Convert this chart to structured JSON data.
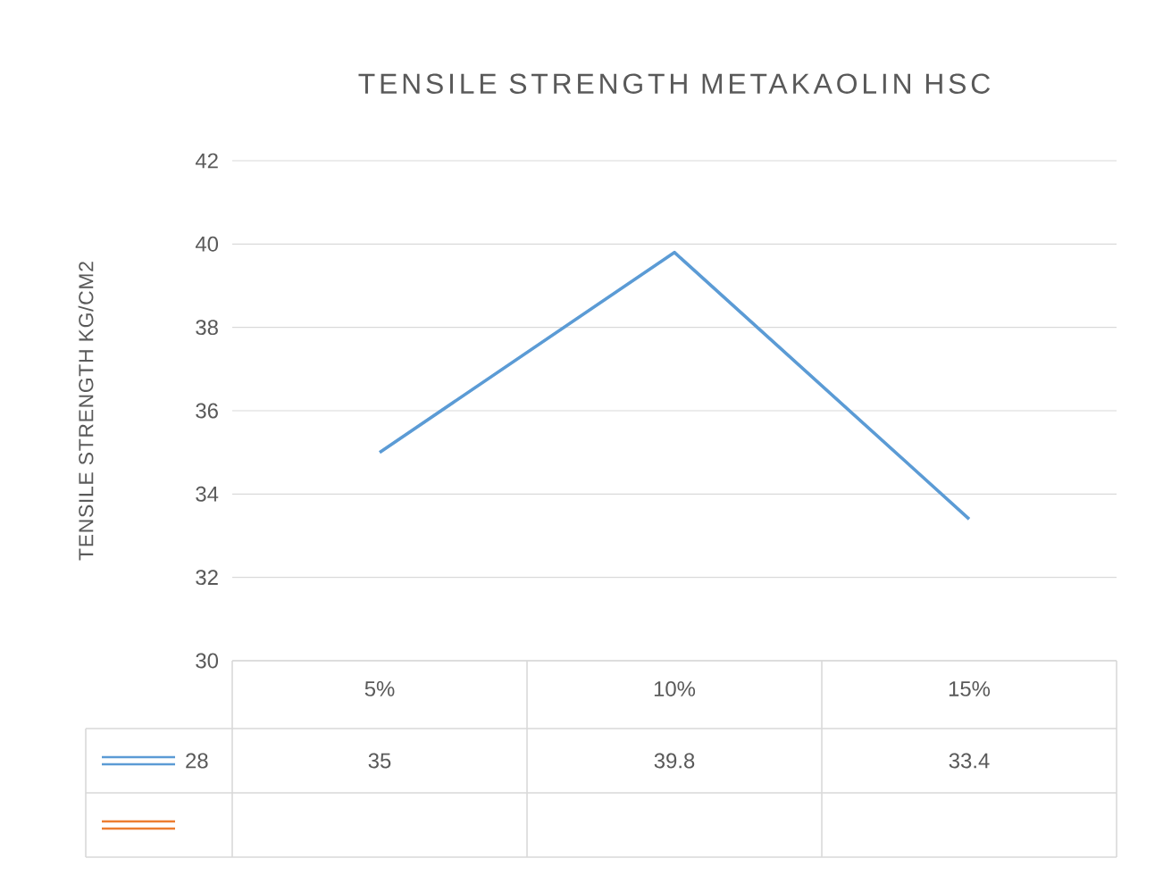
{
  "chart_data": {
    "type": "line",
    "title": "TENSILE STRENGTH METAKAOLIN HSC",
    "ylabel": "TENSILE STRENGTH KG/CM2",
    "categories": [
      "5%",
      "10%",
      "15%"
    ],
    "series": [
      {
        "name": "28",
        "color": "#5b9bd5",
        "values": [
          35,
          39.8,
          33.4
        ]
      },
      {
        "color": "#ed7d31",
        "values": [
          null,
          null,
          null
        ]
      }
    ],
    "ylim": [
      30,
      42
    ],
    "yticks": [
      30,
      32,
      34,
      36,
      38,
      40,
      42
    ],
    "grid": "y",
    "data_labels": true
  }
}
